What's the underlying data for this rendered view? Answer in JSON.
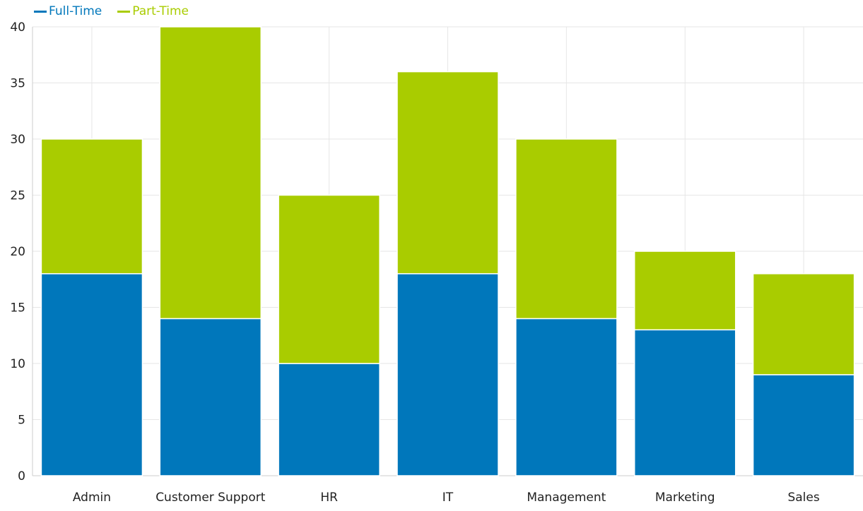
{
  "chart_data": {
    "type": "bar",
    "stacked": true,
    "categories": [
      "Admin",
      "Customer Support",
      "HR",
      "IT",
      "Management",
      "Marketing",
      "Sales"
    ],
    "series": [
      {
        "name": "Full-Time",
        "color": "#0077bb",
        "values": [
          18,
          14,
          10,
          18,
          14,
          13,
          9
        ]
      },
      {
        "name": "Part-Time",
        "color": "#a9cc00",
        "values": [
          12,
          26,
          15,
          18,
          16,
          7,
          9
        ]
      }
    ],
    "ylim": [
      0,
      40
    ],
    "yticks": [
      0,
      5,
      10,
      15,
      20,
      25,
      30,
      35,
      40
    ],
    "grid": true,
    "legend_position": "top-left"
  }
}
